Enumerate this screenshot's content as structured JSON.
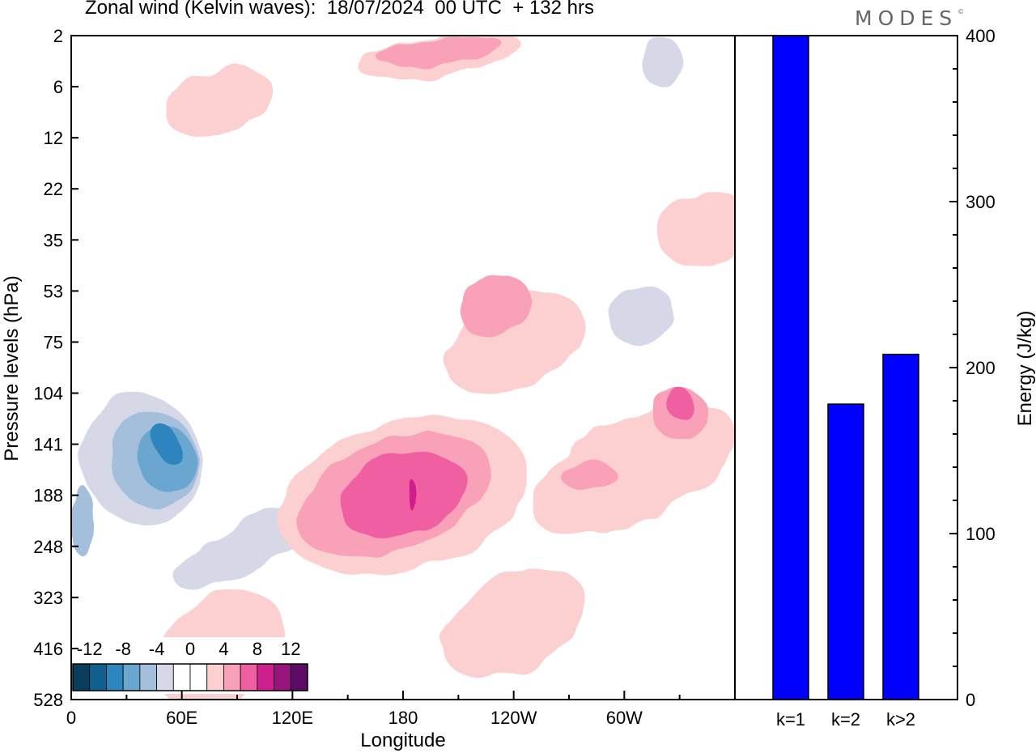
{
  "title": "Zonal wind (Kelvin waves):  18/07/2024  00 UTC  + 132 hrs",
  "logo": {
    "text": "MODES",
    "mark": "©"
  },
  "colors": {
    "bar": "#0000ff",
    "palette": [
      "#0a3d5c",
      "#0f5f8f",
      "#2f85bd",
      "#6aa6cf",
      "#a3bfdb",
      "#d6d8e8",
      "#ffffff",
      "#ffffff",
      "#fcd0d0",
      "#f9a1b9",
      "#ef5fa2",
      "#cf1f8f",
      "#97147c",
      "#5c0a63"
    ]
  },
  "chart_data": [
    {
      "type": "heatmap",
      "xlabel": "Longitude",
      "ylabel": "Pressure levels (hPa)",
      "x_ticks": [
        "0",
        "60E",
        "120E",
        "180",
        "120W",
        "60W"
      ],
      "x_tick_positions_deg": [
        0,
        60,
        120,
        180,
        240,
        300
      ],
      "xlim": [
        0,
        360
      ],
      "y_ticks": [
        "2",
        "6",
        "12",
        "22",
        "35",
        "53",
        "75",
        "104",
        "141",
        "188",
        "248",
        "323",
        "416",
        "528"
      ],
      "colorbar": {
        "labels": [
          "-12",
          "-8",
          "-4",
          "0",
          "4",
          "8",
          "12"
        ],
        "levels": [
          -14,
          -12,
          -10,
          -8,
          -6,
          -4,
          -2,
          0,
          2,
          4,
          6,
          8,
          10,
          12,
          14
        ]
      },
      "contours": [
        {
          "value": -2,
          "lon": 30,
          "level_index": 8.0,
          "width_deg": 60,
          "height_levels": 3.0,
          "angle": -28
        },
        {
          "value": -2,
          "lon": 115,
          "level_index": 9.5,
          "width_deg": 40,
          "height_levels": 4.5,
          "angle": 70
        },
        {
          "value": -2,
          "lon": 145,
          "level_index": 10.6,
          "width_deg": 16,
          "height_levels": 5.0,
          "angle": 80
        },
        {
          "value": -2,
          "lon": 90,
          "level_index": 6.6,
          "width_deg": 70,
          "height_levels": 1.2,
          "angle": -22
        },
        {
          "value": -2,
          "lon": 218,
          "level_index": 5.0,
          "width_deg": 60,
          "height_levels": 1.1,
          "angle": -25
        },
        {
          "value": -2,
          "lon": 318,
          "level_index": 5.5,
          "width_deg": 60,
          "height_levels": 2.0,
          "angle": -30
        },
        {
          "value": -2,
          "lon": 340,
          "level_index": 10.5,
          "width_deg": 50,
          "height_levels": 5.0,
          "angle": 80
        },
        {
          "value": -2,
          "lon": 290,
          "level_index": 11.5,
          "width_deg": 36,
          "height_levels": 3.0,
          "angle": 80
        },
        {
          "value": -2,
          "lon": 325,
          "level_index": 0.7,
          "width_deg": 48,
          "height_levels": 1.3,
          "angle": 0
        },
        {
          "value": -2,
          "lon": 85,
          "level_index": 3.0,
          "width_deg": 20,
          "height_levels": 0.8,
          "angle": -30
        },
        {
          "value": -4,
          "lon": 38,
          "level_index": 8.3,
          "width_deg": 65,
          "height_levels": 2.6,
          "angle": -25
        },
        {
          "value": -4,
          "lon": 96,
          "level_index": 10.0,
          "width_deg": 28,
          "height_levels": 3.2,
          "angle": 65
        },
        {
          "value": -4,
          "lon": 310,
          "level_index": 5.5,
          "width_deg": 36,
          "height_levels": 1.1,
          "angle": -32
        },
        {
          "value": -4,
          "lon": 320,
          "level_index": 0.5,
          "width_deg": 22,
          "height_levels": 1.0,
          "angle": 0
        },
        {
          "value": -6,
          "lon": 45,
          "level_index": 8.3,
          "width_deg": 48,
          "height_levels": 1.9,
          "angle": -22
        },
        {
          "value": -6,
          "lon": 6,
          "level_index": 9.5,
          "width_deg": 10,
          "height_levels": 1.4,
          "angle": 0
        },
        {
          "value": -8,
          "lon": 52,
          "level_index": 8.3,
          "width_deg": 32,
          "height_levels": 1.3,
          "angle": -20
        },
        {
          "value": -10,
          "lon": 52,
          "level_index": 8.0,
          "width_deg": 14,
          "height_levels": 0.9,
          "angle": -30
        },
        {
          "value": 2,
          "lon": 80,
          "level_index": 1.3,
          "width_deg": 60,
          "height_levels": 1.2,
          "angle": -18
        },
        {
          "value": 2,
          "lon": 200,
          "level_index": 0.4,
          "width_deg": 90,
          "height_levels": 0.8,
          "angle": -8
        },
        {
          "value": 2,
          "lon": 180,
          "level_index": 9.0,
          "width_deg": 80,
          "height_levels": 5.0,
          "angle": 75
        },
        {
          "value": 2,
          "lon": 240,
          "level_index": 6.0,
          "width_deg": 80,
          "height_levels": 1.8,
          "angle": -25
        },
        {
          "value": 2,
          "lon": 305,
          "level_index": 8.5,
          "width_deg": 120,
          "height_levels": 2.0,
          "angle": -25
        },
        {
          "value": 2,
          "lon": 345,
          "level_index": 3.8,
          "width_deg": 55,
          "height_levels": 1.4,
          "angle": -12
        },
        {
          "value": 2,
          "lon": 80,
          "level_index": 12.0,
          "width_deg": 55,
          "height_levels": 2.8,
          "angle": 55
        },
        {
          "value": 2,
          "lon": 240,
          "level_index": 11.5,
          "width_deg": 50,
          "height_levels": 3.0,
          "angle": 60
        },
        {
          "value": 4,
          "lon": 175,
          "level_index": 9.0,
          "width_deg": 60,
          "height_levels": 4.0,
          "angle": 70
        },
        {
          "value": 4,
          "lon": 230,
          "level_index": 5.3,
          "width_deg": 40,
          "height_levels": 1.2,
          "angle": -28
        },
        {
          "value": 4,
          "lon": 330,
          "level_index": 7.4,
          "width_deg": 30,
          "height_levels": 1.0,
          "angle": 0
        },
        {
          "value": 4,
          "lon": 280,
          "level_index": 8.6,
          "width_deg": 30,
          "height_levels": 0.6,
          "angle": 0
        },
        {
          "value": 4,
          "lon": 200,
          "level_index": 0.3,
          "width_deg": 70,
          "height_levels": 0.5,
          "angle": -5
        },
        {
          "value": 6,
          "lon": 180,
          "level_index": 9.0,
          "width_deg": 44,
          "height_levels": 2.6,
          "angle": 75
        },
        {
          "value": 6,
          "lon": 330,
          "level_index": 7.2,
          "width_deg": 14,
          "height_levels": 0.6,
          "angle": 0
        },
        {
          "value": 8,
          "lon": 185,
          "level_index": 9.0,
          "width_deg": 4,
          "height_levels": 0.6,
          "angle": 0
        }
      ]
    },
    {
      "type": "bar",
      "categories": [
        "k=1",
        "k=2",
        "k>2"
      ],
      "values": [
        400,
        178,
        208
      ],
      "ylabel": "Energy (J/kg)",
      "ylim": [
        0,
        400
      ],
      "y_ticks": [
        "0",
        "100",
        "200",
        "300",
        "400"
      ]
    }
  ]
}
